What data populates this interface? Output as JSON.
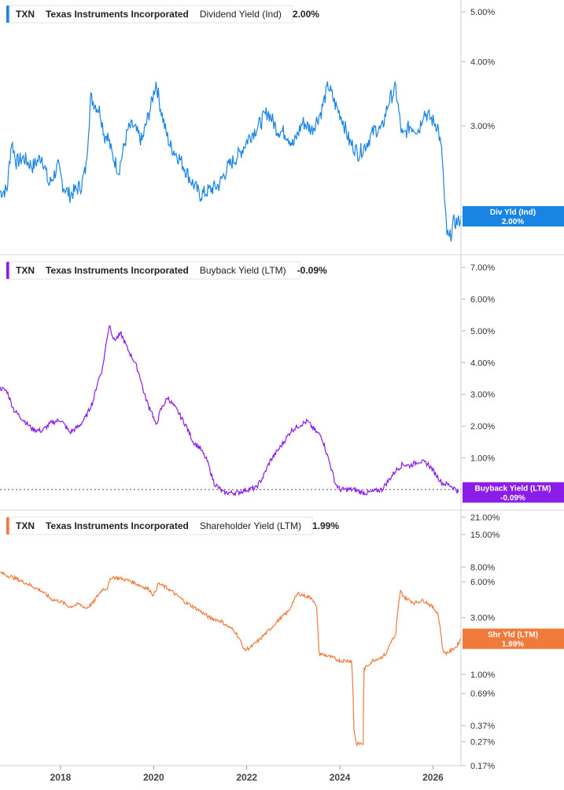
{
  "chart_data": [
    {
      "type": "line",
      "ticker": "TXN",
      "company": "Texas Instruments Incorporated",
      "metric": "Dividend Yield (Ind)",
      "current_value": "2.00%",
      "tag_line1": "Div Yld (Ind)",
      "tag_line2": "2.00%",
      "color": "#1a84e3",
      "scale": "log",
      "ylim": [
        1.72,
        5.2
      ],
      "ticks": [
        {
          "label": "5.00%",
          "value": 5.0
        },
        {
          "label": "4.00%",
          "value": 4.0
        },
        {
          "label": "3.00%",
          "value": 3.0
        },
        {
          "label": "2.00%",
          "value": 2.0
        }
      ],
      "series": [
        {
          "x": [
            2016.7,
            2016.85,
            2016.95,
            2017.05,
            2017.2,
            2017.4,
            2017.6,
            2017.75,
            2017.95,
            2018.05,
            2018.2,
            2018.45,
            2018.55,
            2018.65,
            2018.85,
            2018.95,
            2019.0,
            2019.1,
            2019.25,
            2019.45,
            2019.55,
            2019.75,
            2019.95,
            2020.05,
            2020.15,
            2020.25,
            2020.35,
            2020.55,
            2020.8,
            2021.0,
            2021.2,
            2021.4,
            2021.6,
            2021.85,
            2022.05,
            2022.25,
            2022.45,
            2022.65,
            2022.85,
            2023.0,
            2023.2,
            2023.4,
            2023.6,
            2023.75,
            2023.9,
            2024.05,
            2024.2,
            2024.4,
            2024.55,
            2024.75,
            2024.9,
            2025.05,
            2025.2,
            2025.3,
            2025.35,
            2025.5,
            2025.7,
            2025.8,
            2025.95,
            2026.1,
            2026.2,
            2026.25,
            2026.3,
            2026.35,
            2026.45,
            2026.55,
            2026.6
          ],
          "y": [
            2.23,
            2.25,
            2.8,
            2.55,
            2.6,
            2.5,
            2.62,
            2.3,
            2.5,
            2.3,
            2.2,
            2.3,
            2.5,
            3.4,
            3.2,
            2.85,
            2.9,
            2.65,
            2.45,
            2.95,
            3.0,
            2.8,
            3.3,
            3.65,
            3.25,
            2.95,
            2.75,
            2.6,
            2.35,
            2.2,
            2.25,
            2.3,
            2.5,
            2.65,
            2.85,
            3.0,
            3.2,
            2.95,
            2.9,
            2.75,
            3.05,
            2.95,
            3.2,
            3.6,
            3.3,
            3.1,
            2.8,
            2.65,
            2.75,
            2.95,
            2.95,
            3.35,
            3.55,
            3.0,
            2.85,
            3.0,
            2.95,
            3.2,
            3.1,
            3.0,
            2.6,
            2.1,
            1.85,
            1.8,
            1.95,
            1.95,
            2.0
          ]
        }
      ]
    },
    {
      "type": "line",
      "ticker": "TXN",
      "company": "Texas Instruments Incorporated",
      "metric": "Buyback Yield (LTM)",
      "current_value": "-0.09%",
      "tag_line1": "Buyback Yield (LTM)",
      "tag_line2": "-0.09%",
      "color": "#8a1de8",
      "scale": "linear",
      "ylim": [
        -0.5,
        7.25
      ],
      "ticks": [
        {
          "label": "7.00%",
          "value": 7.0
        },
        {
          "label": "6.00%",
          "value": 6.0
        },
        {
          "label": "5.00%",
          "value": 5.0
        },
        {
          "label": "4.00%",
          "value": 4.0
        },
        {
          "label": "3.00%",
          "value": 3.0
        },
        {
          "label": "2.00%",
          "value": 2.0
        },
        {
          "label": "1.00%",
          "value": 1.0
        }
      ],
      "zero_line": 0,
      "series": [
        {
          "x": [
            2016.7,
            2016.85,
            2017.0,
            2017.2,
            2017.4,
            2017.6,
            2017.8,
            2018.0,
            2018.2,
            2018.4,
            2018.55,
            2018.7,
            2018.8,
            2018.9,
            2019.0,
            2019.05,
            2019.15,
            2019.3,
            2019.45,
            2019.6,
            2019.7,
            2019.8,
            2019.9,
            2019.95,
            2020.05,
            2020.15,
            2020.3,
            2020.5,
            2020.7,
            2020.85,
            2021.0,
            2021.15,
            2021.3,
            2021.5,
            2021.55,
            2021.8,
            2022.0,
            2022.2,
            2022.35,
            2022.5,
            2022.75,
            2022.95,
            2023.1,
            2023.3,
            2023.5,
            2023.6,
            2023.8,
            2023.9,
            2024.0,
            2024.3,
            2024.5,
            2024.6,
            2024.9,
            2025.0,
            2025.2,
            2025.35,
            2025.5,
            2025.7,
            2025.9,
            2026.05,
            2026.2,
            2026.35,
            2026.5,
            2026.55
          ],
          "y": [
            3.2,
            3.1,
            2.5,
            2.2,
            1.9,
            1.85,
            2.1,
            2.2,
            1.8,
            2.0,
            2.3,
            2.8,
            3.4,
            3.8,
            4.8,
            5.2,
            4.7,
            4.9,
            4.4,
            4.0,
            3.6,
            3.0,
            2.6,
            2.5,
            2.0,
            2.5,
            2.9,
            2.5,
            2.0,
            1.5,
            1.3,
            0.9,
            0.2,
            -0.1,
            -0.1,
            -0.1,
            0.0,
            0.05,
            0.4,
            0.9,
            1.4,
            1.85,
            2.0,
            2.15,
            1.8,
            1.7,
            0.75,
            0.2,
            0.0,
            0.0,
            -0.1,
            -0.1,
            0.0,
            0.2,
            0.6,
            0.8,
            0.75,
            0.9,
            0.8,
            0.5,
            0.2,
            0.15,
            0.0,
            -0.09
          ]
        }
      ]
    },
    {
      "type": "line",
      "ticker": "TXN",
      "company": "Texas Instruments Incorporated",
      "metric": "Shareholder Yield (LTM)",
      "current_value": "1.99%",
      "tag_line1": "Shr Yld (LTM)",
      "tag_line2": "1.99%",
      "color": "#f07a3a",
      "scale": "log",
      "ylim": [
        0.17,
        22.0
      ],
      "ticks": [
        {
          "label": "21.00%",
          "value": 21.0
        },
        {
          "label": "15.00%",
          "value": 15.0
        },
        {
          "label": "8.00%",
          "value": 8.0
        },
        {
          "label": "6.00%",
          "value": 6.0
        },
        {
          "label": "3.00%",
          "value": 3.0
        },
        {
          "label": "1.00%",
          "value": 1.0
        },
        {
          "label": "0.69%",
          "value": 0.69
        },
        {
          "label": "0.37%",
          "value": 0.37
        },
        {
          "label": "0.27%",
          "value": 0.27
        },
        {
          "label": "0.17%",
          "value": 0.17
        }
      ],
      "series": [
        {
          "x": [
            2016.7,
            2016.85,
            2017.0,
            2017.2,
            2017.4,
            2017.6,
            2017.8,
            2018.0,
            2018.2,
            2018.4,
            2018.55,
            2018.7,
            2018.9,
            2019.0,
            2019.1,
            2019.3,
            2019.5,
            2019.7,
            2019.9,
            2020.0,
            2020.1,
            2020.3,
            2020.5,
            2020.7,
            2021.0,
            2021.2,
            2021.45,
            2021.55,
            2021.75,
            2021.95,
            2022.1,
            2022.3,
            2022.5,
            2022.7,
            2022.9,
            2023.1,
            2023.3,
            2023.4,
            2023.5,
            2023.55,
            2023.8,
            2024.0,
            2024.25,
            2024.3,
            2024.35,
            2024.4,
            2024.5,
            2024.52,
            2024.7,
            2024.9,
            2025.0,
            2025.1,
            2025.2,
            2025.3,
            2025.4,
            2025.6,
            2025.8,
            2025.95,
            2026.1,
            2026.2,
            2026.25,
            2026.35,
            2026.5,
            2026.6
          ],
          "y": [
            7.2,
            6.8,
            6.5,
            6.0,
            5.5,
            5.0,
            4.3,
            4.1,
            3.7,
            3.9,
            3.6,
            4.0,
            5.2,
            5.3,
            6.6,
            6.4,
            6.1,
            5.6,
            5.2,
            4.6,
            5.8,
            5.3,
            4.6,
            4.0,
            3.4,
            3.0,
            2.8,
            2.6,
            2.3,
            1.6,
            1.7,
            2.0,
            2.4,
            2.9,
            3.4,
            4.8,
            4.5,
            4.4,
            3.6,
            1.5,
            1.4,
            1.3,
            1.3,
            0.35,
            0.26,
            0.26,
            0.26,
            1.1,
            1.3,
            1.4,
            1.5,
            1.9,
            2.1,
            5.0,
            4.4,
            4.0,
            4.2,
            3.8,
            3.3,
            1.7,
            1.5,
            1.55,
            1.7,
            1.99
          ]
        }
      ]
    }
  ],
  "x_axis": {
    "range": [
      2016.7,
      2026.6
    ],
    "ticks": [
      {
        "label": "2018",
        "value": 2018
      },
      {
        "label": "2020",
        "value": 2020
      },
      {
        "label": "2022",
        "value": 2022
      },
      {
        "label": "2024",
        "value": 2024
      },
      {
        "label": "2026",
        "value": 2026
      }
    ]
  }
}
